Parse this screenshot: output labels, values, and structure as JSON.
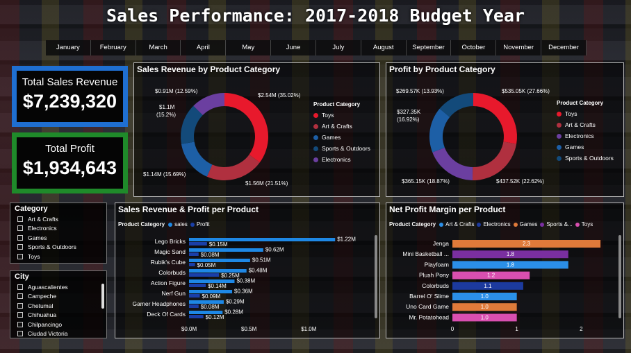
{
  "title": "Sales Performance: 2017-2018 Budget Year",
  "months": [
    "January",
    "February",
    "March",
    "April",
    "May",
    "June",
    "July",
    "August",
    "September",
    "October",
    "November",
    "December"
  ],
  "kpis": {
    "revenue": {
      "label": "Total Sales Revenue",
      "value": "$7,239,320",
      "color": "#1f6fd1"
    },
    "profit": {
      "label": "Total Profit",
      "value": "$1,934,643",
      "color": "#1f8a2a"
    }
  },
  "colors": {
    "toys": "#e8192c",
    "arts": "#b0303f",
    "games": "#1d5fa6",
    "sports": "#134a7a",
    "electronics": "#6b3fa0",
    "bar_sales": "#1e88e5",
    "bar_profit": "#1a3fa8",
    "orange": "#e07a3a",
    "purple": "#7a2fa0",
    "pink": "#d94fb0",
    "navy": "#1c3a9e",
    "lightblue": "#2b8fe8"
  },
  "revenue_donut": {
    "title": "Sales Revenue by Product Category",
    "legend_title": "Product Category",
    "legend": [
      "Toys",
      "Art & Crafts",
      "Games",
      "Sports & Outdoors",
      "Electronics"
    ],
    "labels": {
      "a": "$2.54M (35.02%)",
      "b": "$1.56M (21.51%)",
      "c": "$1.14M (15.69%)",
      "d1": "$1.1M",
      "d2": "(15.2%)",
      "e": "$0.91M (12.59%)"
    },
    "chart_data": {
      "type": "pie",
      "categories": [
        "Toys",
        "Art & Crafts",
        "Games",
        "Sports & Outdoors",
        "Electronics"
      ],
      "values": [
        2.54,
        1.56,
        1.14,
        1.1,
        0.91
      ],
      "percent": [
        35.02,
        21.51,
        15.69,
        15.2,
        12.59
      ]
    }
  },
  "profit_donut": {
    "title": "Profit by Product Category",
    "legend_title": "Product Category",
    "legend": [
      "Toys",
      "Art & Crafts",
      "Electronics",
      "Games",
      "Sports & Outdoors"
    ],
    "labels": {
      "a": "$535.05K (27.66%)",
      "b": "$437.52K (22.62%)",
      "c": "$365.15K (18.87%)",
      "d1": "$327.35K",
      "d2": "(16.92%)",
      "e": "$269.57K (13.93%)"
    },
    "chart_data": {
      "type": "pie",
      "categories": [
        "Toys",
        "Art & Crafts",
        "Electronics",
        "Games",
        "Sports & Outdoors"
      ],
      "values": [
        535.05,
        437.52,
        365.15,
        327.35,
        269.57
      ],
      "percent": [
        27.66,
        22.62,
        18.87,
        16.92,
        13.93
      ]
    }
  },
  "category_slicer": {
    "title": "Category",
    "items": [
      "Art & Crafts",
      "Electronics",
      "Games",
      "Sports & Outdoors",
      "Toys"
    ]
  },
  "city_slicer": {
    "title": "City",
    "items": [
      "Aguascalientes",
      "Campeche",
      "Chetumal",
      "Chihuahua",
      "Chilpancingo",
      "Ciudad Victoria"
    ]
  },
  "product_bars": {
    "title": "Sales Revenue & Profit per Product",
    "legend_title": "Product Category",
    "legend": [
      "sales",
      "Profit"
    ],
    "x_ticks": [
      "$0.0M",
      "$0.5M",
      "$1.0M"
    ],
    "chart_data": {
      "type": "bar",
      "categories": [
        "Lego Bricks",
        "Magic Sand",
        "Rubik's Cube",
        "Colorbuds",
        "Action Figure",
        "Nerf Gun",
        "Gamer Headphones",
        "Deck Of Cards"
      ],
      "series": [
        {
          "name": "sales",
          "values": [
            1.22,
            0.62,
            0.51,
            0.48,
            0.38,
            0.36,
            0.29,
            0.28
          ],
          "labels": [
            "$1.22M",
            "$0.62M",
            "$0.51M",
            "$0.48M",
            "$0.38M",
            "$0.36M",
            "$0.29M",
            "$0.28M"
          ]
        },
        {
          "name": "Profit",
          "values": [
            0.15,
            0.08,
            0.05,
            0.25,
            0.14,
            0.09,
            0.08,
            0.12
          ],
          "labels": [
            "$0.15M",
            "$0.08M",
            "$0.05M",
            "$0.25M",
            "$0.14M",
            "$0.09M",
            "$0.08M",
            "$0.12M"
          ]
        }
      ],
      "xlim": [
        0,
        1.3
      ]
    }
  },
  "margin_bars": {
    "title": "Net Profit Margin per Product",
    "legend_title": "Product Category",
    "legend": [
      "Art & Crafts",
      "Electronics",
      "Games",
      "Sports &...",
      "Toys"
    ],
    "x_ticks": [
      "0",
      "1",
      "2"
    ],
    "chart_data": {
      "type": "bar",
      "categories": [
        "Jenga",
        "Mini Basketball ...",
        "Playfoam",
        "Plush Pony",
        "Colorbuds",
        "Barrel O' Slime",
        "Uno Card Game",
        "Mr. Potatohead"
      ],
      "values": [
        2.3,
        1.8,
        1.8,
        1.2,
        1.1,
        1.0,
        1.0,
        1.0
      ],
      "labels": [
        "2.3",
        "1.8",
        "1.8",
        "1.2",
        "1.1",
        "1.0",
        "1.0",
        "1.0"
      ],
      "colors": [
        "#e07a3a",
        "#7a2fa0",
        "#2b8fe8",
        "#d94fb0",
        "#1c3a9e",
        "#2b8fe8",
        "#e07a3a",
        "#d94fb0"
      ],
      "xlim": [
        0,
        2.45
      ]
    }
  }
}
